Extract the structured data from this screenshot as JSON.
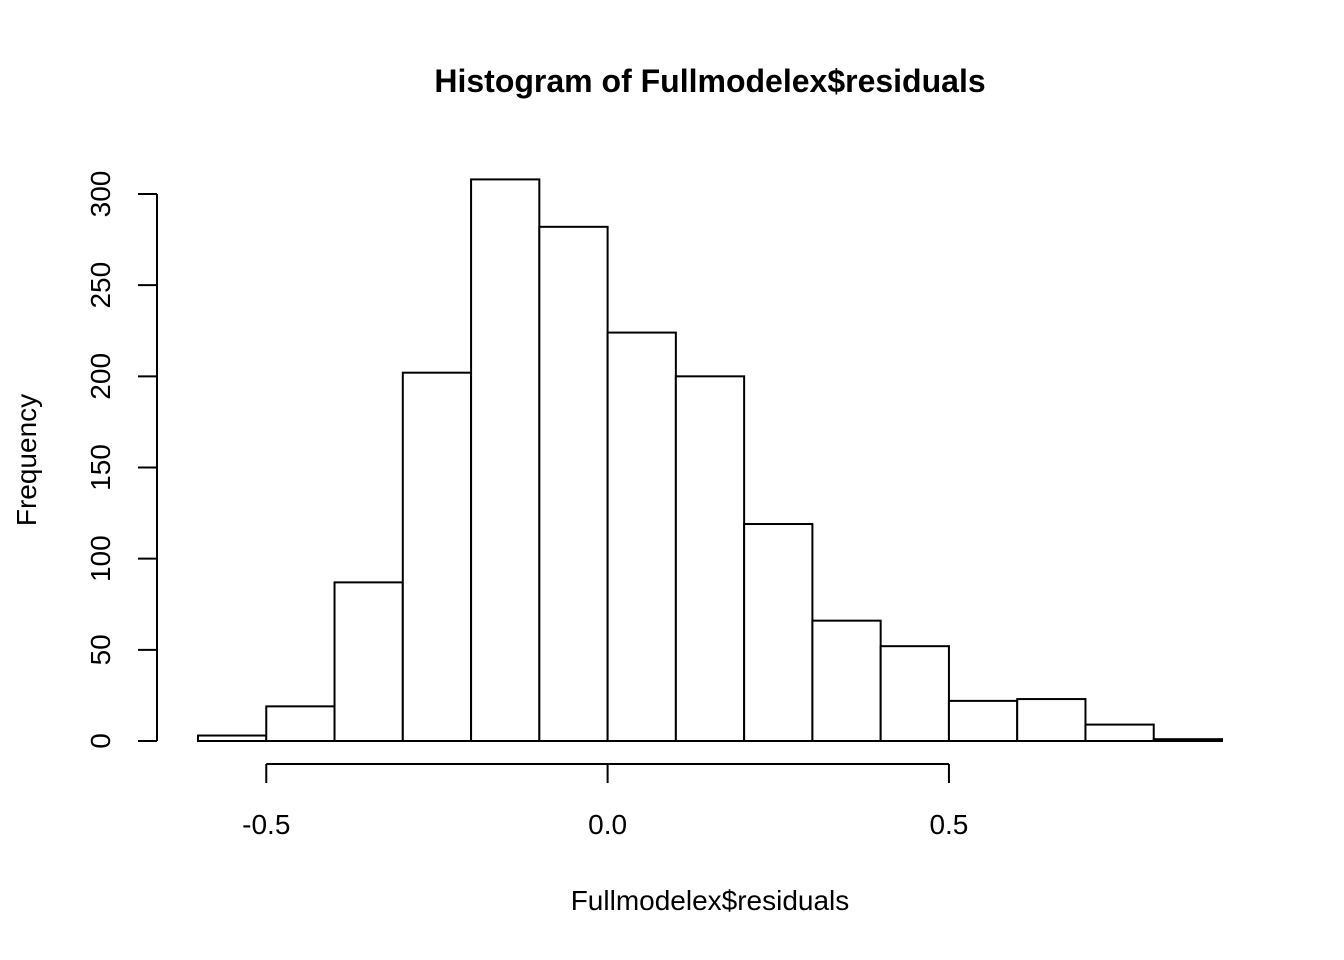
{
  "chart_data": {
    "type": "bar",
    "title": "Histogram of Fullmodelex$residuals",
    "xlabel": "Fullmodelex$residuals",
    "ylabel": "Frequency",
    "bin_edges": [
      -0.6,
      -0.5,
      -0.4,
      -0.3,
      -0.2,
      -0.1,
      0.0,
      0.1,
      0.2,
      0.3,
      0.4,
      0.5,
      0.6,
      0.7,
      0.8,
      0.9
    ],
    "values": [
      3,
      19,
      87,
      202,
      308,
      282,
      224,
      200,
      119,
      66,
      52,
      22,
      23,
      9,
      1
    ],
    "xlim": [
      -0.6,
      0.9
    ],
    "ylim": [
      0,
      300
    ],
    "x_ticks": [
      -0.5,
      0.0,
      0.5
    ],
    "x_tick_labels": [
      "-0.5",
      "0.0",
      "0.5"
    ],
    "y_ticks": [
      0,
      50,
      100,
      150,
      200,
      250,
      300
    ],
    "y_tick_labels": [
      "0",
      "50",
      "100",
      "150",
      "200",
      "250",
      "300"
    ],
    "grid": false,
    "bar_fill": "#ffffff",
    "bar_stroke": "#000000"
  }
}
